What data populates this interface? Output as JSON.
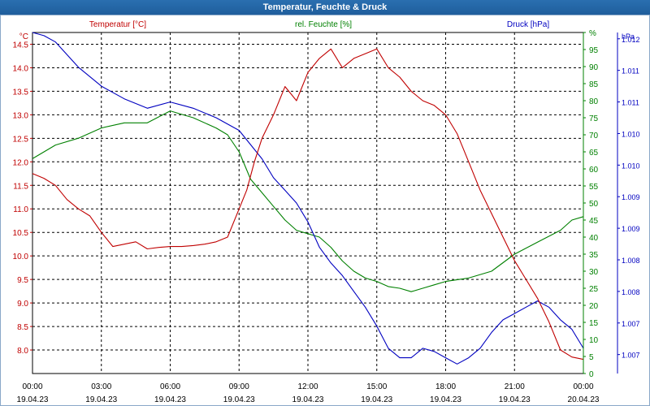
{
  "window": {
    "title": "Temperatur, Feuchte & Druck"
  },
  "colors": {
    "temperature": "#c00000",
    "humidity": "#008000",
    "pressure": "#0000c0",
    "grid": "#000000",
    "title_bar": "#2a6fb0"
  },
  "chart_data": {
    "type": "line",
    "title": "Temperatur, Feuchte & Druck",
    "x_ticks": [
      {
        "time": "00:00",
        "date": "19.04.23"
      },
      {
        "time": "03:00",
        "date": "19.04.23"
      },
      {
        "time": "06:00",
        "date": "19.04.23"
      },
      {
        "time": "09:00",
        "date": "19.04.23"
      },
      {
        "time": "12:00",
        "date": "19.04.23"
      },
      {
        "time": "15:00",
        "date": "19.04.23"
      },
      {
        "time": "18:00",
        "date": "19.04.23"
      },
      {
        "time": "21:00",
        "date": "19.04.23"
      },
      {
        "time": "00:00",
        "date": "20.04.23"
      }
    ],
    "x_range": [
      "19.04.23 00:00",
      "20.04.23 00:00"
    ],
    "grid": true,
    "series": [
      {
        "name": "Temperatur [°C]",
        "unit": "°C",
        "axis": "left",
        "ylim": [
          7.5,
          14.75
        ],
        "ticks": [
          "8.0",
          "8.5",
          "9.0",
          "9.5",
          "10.0",
          "10.5",
          "11.0",
          "11.5",
          "12.0",
          "12.5",
          "13.0",
          "13.5",
          "14.0",
          "14.5"
        ],
        "x": [
          "00:00",
          "00:30",
          "01:00",
          "01:30",
          "02:00",
          "02:30",
          "03:00",
          "03:30",
          "04:00",
          "04:30",
          "05:00",
          "05:30",
          "06:00",
          "06:30",
          "07:00",
          "07:30",
          "08:00",
          "08:30",
          "09:00",
          "09:20",
          "09:40",
          "10:00",
          "10:30",
          "11:00",
          "11:30",
          "12:00",
          "12:30",
          "13:00",
          "13:30",
          "14:00",
          "14:30",
          "15:00",
          "15:30",
          "16:00",
          "16:30",
          "17:00",
          "17:30",
          "18:00",
          "18:30",
          "19:00",
          "19:30",
          "20:00",
          "20:30",
          "21:00",
          "21:30",
          "22:00",
          "22:30",
          "23:00",
          "23:30",
          "24:00"
        ],
        "values": [
          11.75,
          11.65,
          11.5,
          11.2,
          11.0,
          10.85,
          10.5,
          10.2,
          10.25,
          10.3,
          10.15,
          10.18,
          10.2,
          10.2,
          10.22,
          10.25,
          10.3,
          10.4,
          11.0,
          11.4,
          12.0,
          12.5,
          13.0,
          13.6,
          13.3,
          13.9,
          14.2,
          14.4,
          14.0,
          14.2,
          14.3,
          14.4,
          14.0,
          13.8,
          13.5,
          13.3,
          13.2,
          13.0,
          12.6,
          12.0,
          11.4,
          10.9,
          10.4,
          9.9,
          9.5,
          9.1,
          8.6,
          8.0,
          7.85,
          7.8
        ]
      },
      {
        "name": "rel. Feuchte [%]",
        "unit": "%",
        "axis": "right",
        "ylim": [
          0,
          100
        ],
        "ticks": [
          "0",
          "5",
          "10",
          "15",
          "20",
          "25",
          "30",
          "35",
          "40",
          "45",
          "50",
          "55",
          "60",
          "65",
          "70",
          "75",
          "80",
          "85",
          "90",
          "95",
          "%"
        ],
        "x": [
          "00:00",
          "01:00",
          "02:00",
          "03:00",
          "04:00",
          "05:00",
          "06:00",
          "07:00",
          "08:00",
          "08:30",
          "09:00",
          "09:30",
          "10:00",
          "10:30",
          "11:00",
          "11:30",
          "12:00",
          "12:30",
          "13:00",
          "13:30",
          "14:00",
          "14:30",
          "15:00",
          "15:30",
          "16:00",
          "16:30",
          "17:00",
          "17:30",
          "18:00",
          "19:00",
          "20:00",
          "21:00",
          "22:00",
          "23:00",
          "23:30",
          "24:00"
        ],
        "values": [
          63,
          67,
          69,
          72,
          73.5,
          73.5,
          77,
          75,
          72,
          70,
          65,
          57,
          53,
          49,
          45,
          42,
          41,
          40,
          37,
          33,
          30,
          28,
          27,
          25.5,
          25,
          24,
          25,
          26,
          27,
          28,
          30,
          35,
          38.5,
          42,
          45,
          46
        ]
      },
      {
        "name": "Druck [hPa]",
        "unit": "hPa",
        "axis": "right2",
        "ylim": [
          1006.7,
          1012.1
        ],
        "ticks": [
          "1.007",
          "1.007",
          "1.008",
          "1.008",
          "1.009",
          "1.009",
          "1.010",
          "1.010",
          "1.011",
          "1.011",
          "1.012",
          "hPa"
        ],
        "x": [
          "00:00",
          "00:30",
          "01:00",
          "02:00",
          "03:00",
          "04:00",
          "05:00",
          "06:00",
          "07:00",
          "08:00",
          "09:00",
          "10:00",
          "10:30",
          "11:00",
          "11:30",
          "12:00",
          "12:30",
          "13:00",
          "13:30",
          "14:00",
          "14:30",
          "15:00",
          "15:30",
          "16:00",
          "16:30",
          "17:00",
          "17:30",
          "18:00",
          "18:30",
          "19:00",
          "19:30",
          "20:00",
          "20:30",
          "21:00",
          "21:30",
          "22:00",
          "22:30",
          "23:00",
          "23:30",
          "24:00"
        ],
        "values": [
          1012.1,
          1012.05,
          1011.95,
          1011.55,
          1011.25,
          1011.05,
          1010.9,
          1011.0,
          1010.9,
          1010.75,
          1010.55,
          1010.1,
          1009.8,
          1009.6,
          1009.4,
          1009.1,
          1008.7,
          1008.45,
          1008.25,
          1008.0,
          1007.75,
          1007.45,
          1007.1,
          1006.95,
          1006.95,
          1007.1,
          1007.05,
          1006.95,
          1006.85,
          1006.95,
          1007.1,
          1007.35,
          1007.55,
          1007.65,
          1007.75,
          1007.85,
          1007.75,
          1007.55,
          1007.4,
          1007.1
        ]
      }
    ]
  }
}
